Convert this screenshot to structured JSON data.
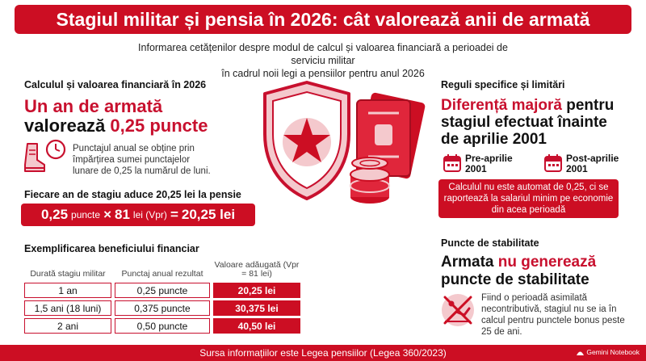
{
  "header": {
    "title": "Stagiul militar și pensia în 2026: cât valorează anii de armată",
    "subtitle_line1": "Informarea cetățenilor despre modul de calcul și valoarea financiară a perioadei de serviciu militar",
    "subtitle_line2": "în cadrul noii legi a pensiilor pentru anul 2026"
  },
  "calc": {
    "heading": "Calculul și valoarea financiară în 2026",
    "big_line1_red": "Un an de armată",
    "big_line2_black": "valorează ",
    "big_line2_red": "0,25 puncte",
    "note": "Punctajul anual se obține prin împărțirea sumei punctajelor lunare de 0,25 la numărul de luni.",
    "formula_heading": "Fiecare an de stagiu aduce 20,25 lei la pensie",
    "formula": {
      "n1": "0,25",
      "u1": "puncte",
      "op1": "×",
      "n2": "81",
      "u2": "lei (Vpr)",
      "op2": "=",
      "result": "20,25 lei"
    }
  },
  "benefit": {
    "heading": "Exemplificarea beneficiului financiar",
    "columns": [
      "Durată stagiu militar",
      "Punctaj anual rezultat",
      "Valoare adăugată (Vpr = 81 lei)"
    ],
    "rows": [
      [
        "1 an",
        "0,25 puncte",
        "20,25 lei"
      ],
      [
        "1,5 ani (18 luni)",
        "0,375 puncte",
        "30,375 lei"
      ],
      [
        "2 ani",
        "0,50 puncte",
        "40,50 lei"
      ]
    ]
  },
  "rules": {
    "heading": "Reguli specifice și limitări",
    "big_red": "Diferență majoră",
    "big_black1": " pentru",
    "big_black2": "stagiul efectuat înainte",
    "big_black3": "de aprilie 2001",
    "pre_label": "Pre-aprilie 2001",
    "post_label": "Post-aprilie 2001",
    "box_text": "Calculul nu este automat de 0,25, ci se raportează la salariul minim pe economie din acea perioadă"
  },
  "stability": {
    "heading": "Puncte de stabilitate",
    "big_black1": "Armata ",
    "big_red": "nu generează",
    "big_black2": "puncte de stabilitate",
    "note": "Fiind o perioadă asimilată necontributivă, stagiul nu se ia în calcul pentru punctele bonus peste 25 de ani."
  },
  "footer": {
    "source": "Sursa informațiilor este Legea pensiilor (Legea 360/2023)",
    "brand": "Gemini Notebook"
  },
  "colors": {
    "accent": "#cc0e23",
    "accent_light": "#f4c9cd"
  },
  "icons": [
    "boot-icon",
    "clock-icon",
    "shield-star-icon",
    "passport-icon",
    "coins-icon",
    "calendar-icon",
    "exercising-person-crossed-icon"
  ]
}
